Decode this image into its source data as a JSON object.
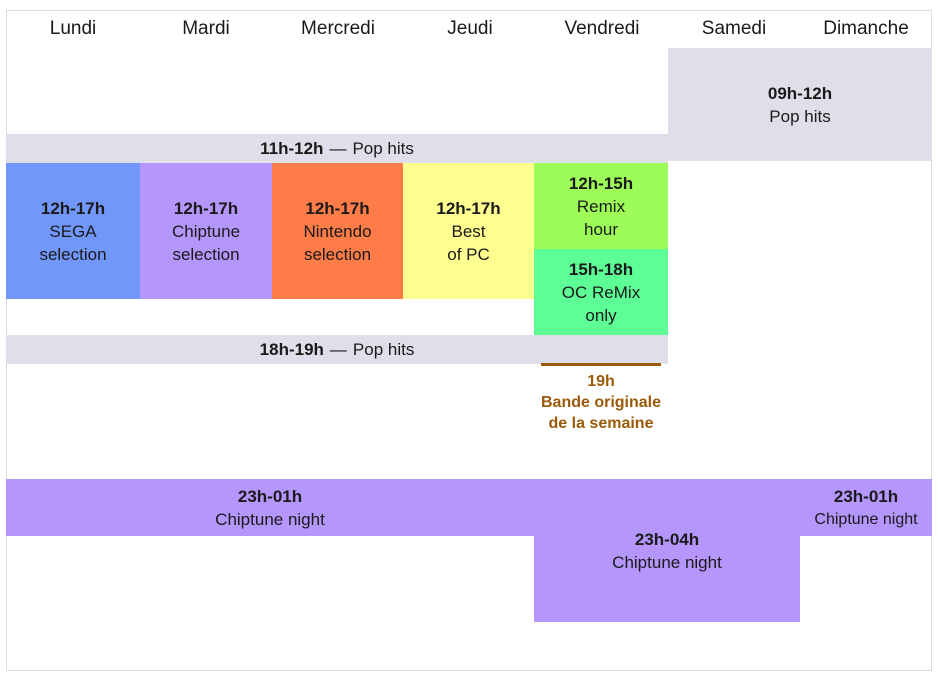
{
  "days": [
    "Lundi",
    "Mardi",
    "Mercredi",
    "Jeudi",
    "Vendredi",
    "Samedi",
    "Dimanche"
  ],
  "dash": "—",
  "blocks": {
    "weekend_morning": {
      "time": "09h-12h",
      "name": "Pop hits"
    },
    "noon_pop": {
      "time": "11h-12h",
      "name": "Pop hits"
    },
    "sega": {
      "time": "12h-17h",
      "line1": "SEGA",
      "line2": "selection"
    },
    "chiptune": {
      "time": "12h-17h",
      "line1": "Chiptune",
      "line2": "selection"
    },
    "nintendo": {
      "time": "12h-17h",
      "line1": "Nintendo",
      "line2": "selection"
    },
    "pc": {
      "time": "12h-17h",
      "line1": "Best",
      "line2": "of PC"
    },
    "remix_hour": {
      "time": "12h-15h",
      "line1": "Remix",
      "line2": "hour"
    },
    "ocremix": {
      "time": "15h-18h",
      "line1": "OC ReMix",
      "line2": "only"
    },
    "evening_pop": {
      "time": "18h-19h",
      "name": "Pop hits"
    },
    "ost": {
      "time": "19h",
      "line1": "Bande originale",
      "line2": "de la semaine"
    },
    "night_week": {
      "time": "23h-01h",
      "name": "Chiptune night"
    },
    "night_friday": {
      "time": "23h-04h",
      "name": "Chiptune night"
    },
    "night_sunday": {
      "time": "23h-01h",
      "name": "Chiptune night"
    }
  },
  "colors": {
    "pop": "#dfdfe9",
    "night": "#b496fc",
    "sega": "#7297fb",
    "chiptune": "#b496fc",
    "nintendo": "#fe7c48",
    "pc": "#fefe90",
    "remix": "#9efc58",
    "ocremix": "#5efe97",
    "ost": "#9a5a09"
  }
}
